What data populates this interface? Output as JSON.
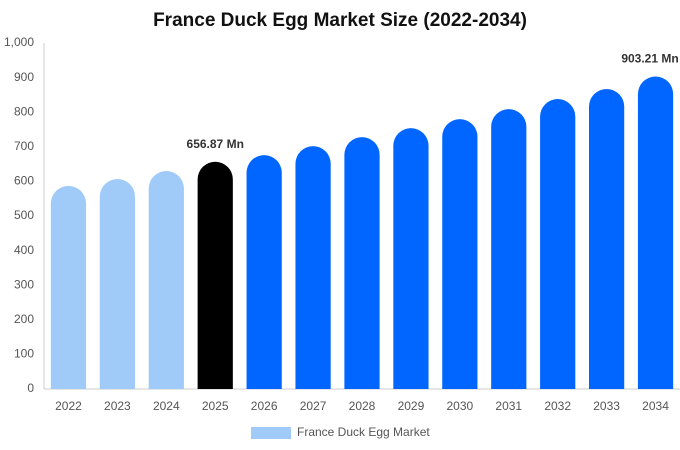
{
  "chart_data": {
    "type": "bar",
    "title": "France Duck Egg Market Size (2022-2034)",
    "categories": [
      "2022",
      "2023",
      "2024",
      "2025",
      "2026",
      "2027",
      "2028",
      "2029",
      "2030",
      "2031",
      "2032",
      "2033",
      "2034"
    ],
    "series": [
      {
        "name": "France Duck Egg Market",
        "color": "#a0cbf9",
        "values": [
          587,
          607,
          630,
          656.87,
          676,
          702,
          728,
          754,
          780,
          809,
          838,
          867,
          903.21
        ],
        "value_labels": [
          null,
          null,
          null,
          "656.87 Mn",
          null,
          null,
          null,
          null,
          null,
          null,
          null,
          null,
          "903.21 Mn"
        ],
        "colors": [
          "#a0cbf9",
          "#a0cbf9",
          "#a0cbf9",
          "#000000",
          "#0066ff",
          "#0066ff",
          "#0066ff",
          "#0066ff",
          "#0066ff",
          "#0066ff",
          "#0066ff",
          "#0066ff",
          "#0066ff"
        ]
      }
    ],
    "ylim": [
      0,
      1000
    ],
    "yticks": [
      0,
      100,
      200,
      300,
      400,
      500,
      600,
      700,
      800,
      900,
      {
        "value": 1000,
        "label": "1,000"
      }
    ],
    "grid": false
  }
}
